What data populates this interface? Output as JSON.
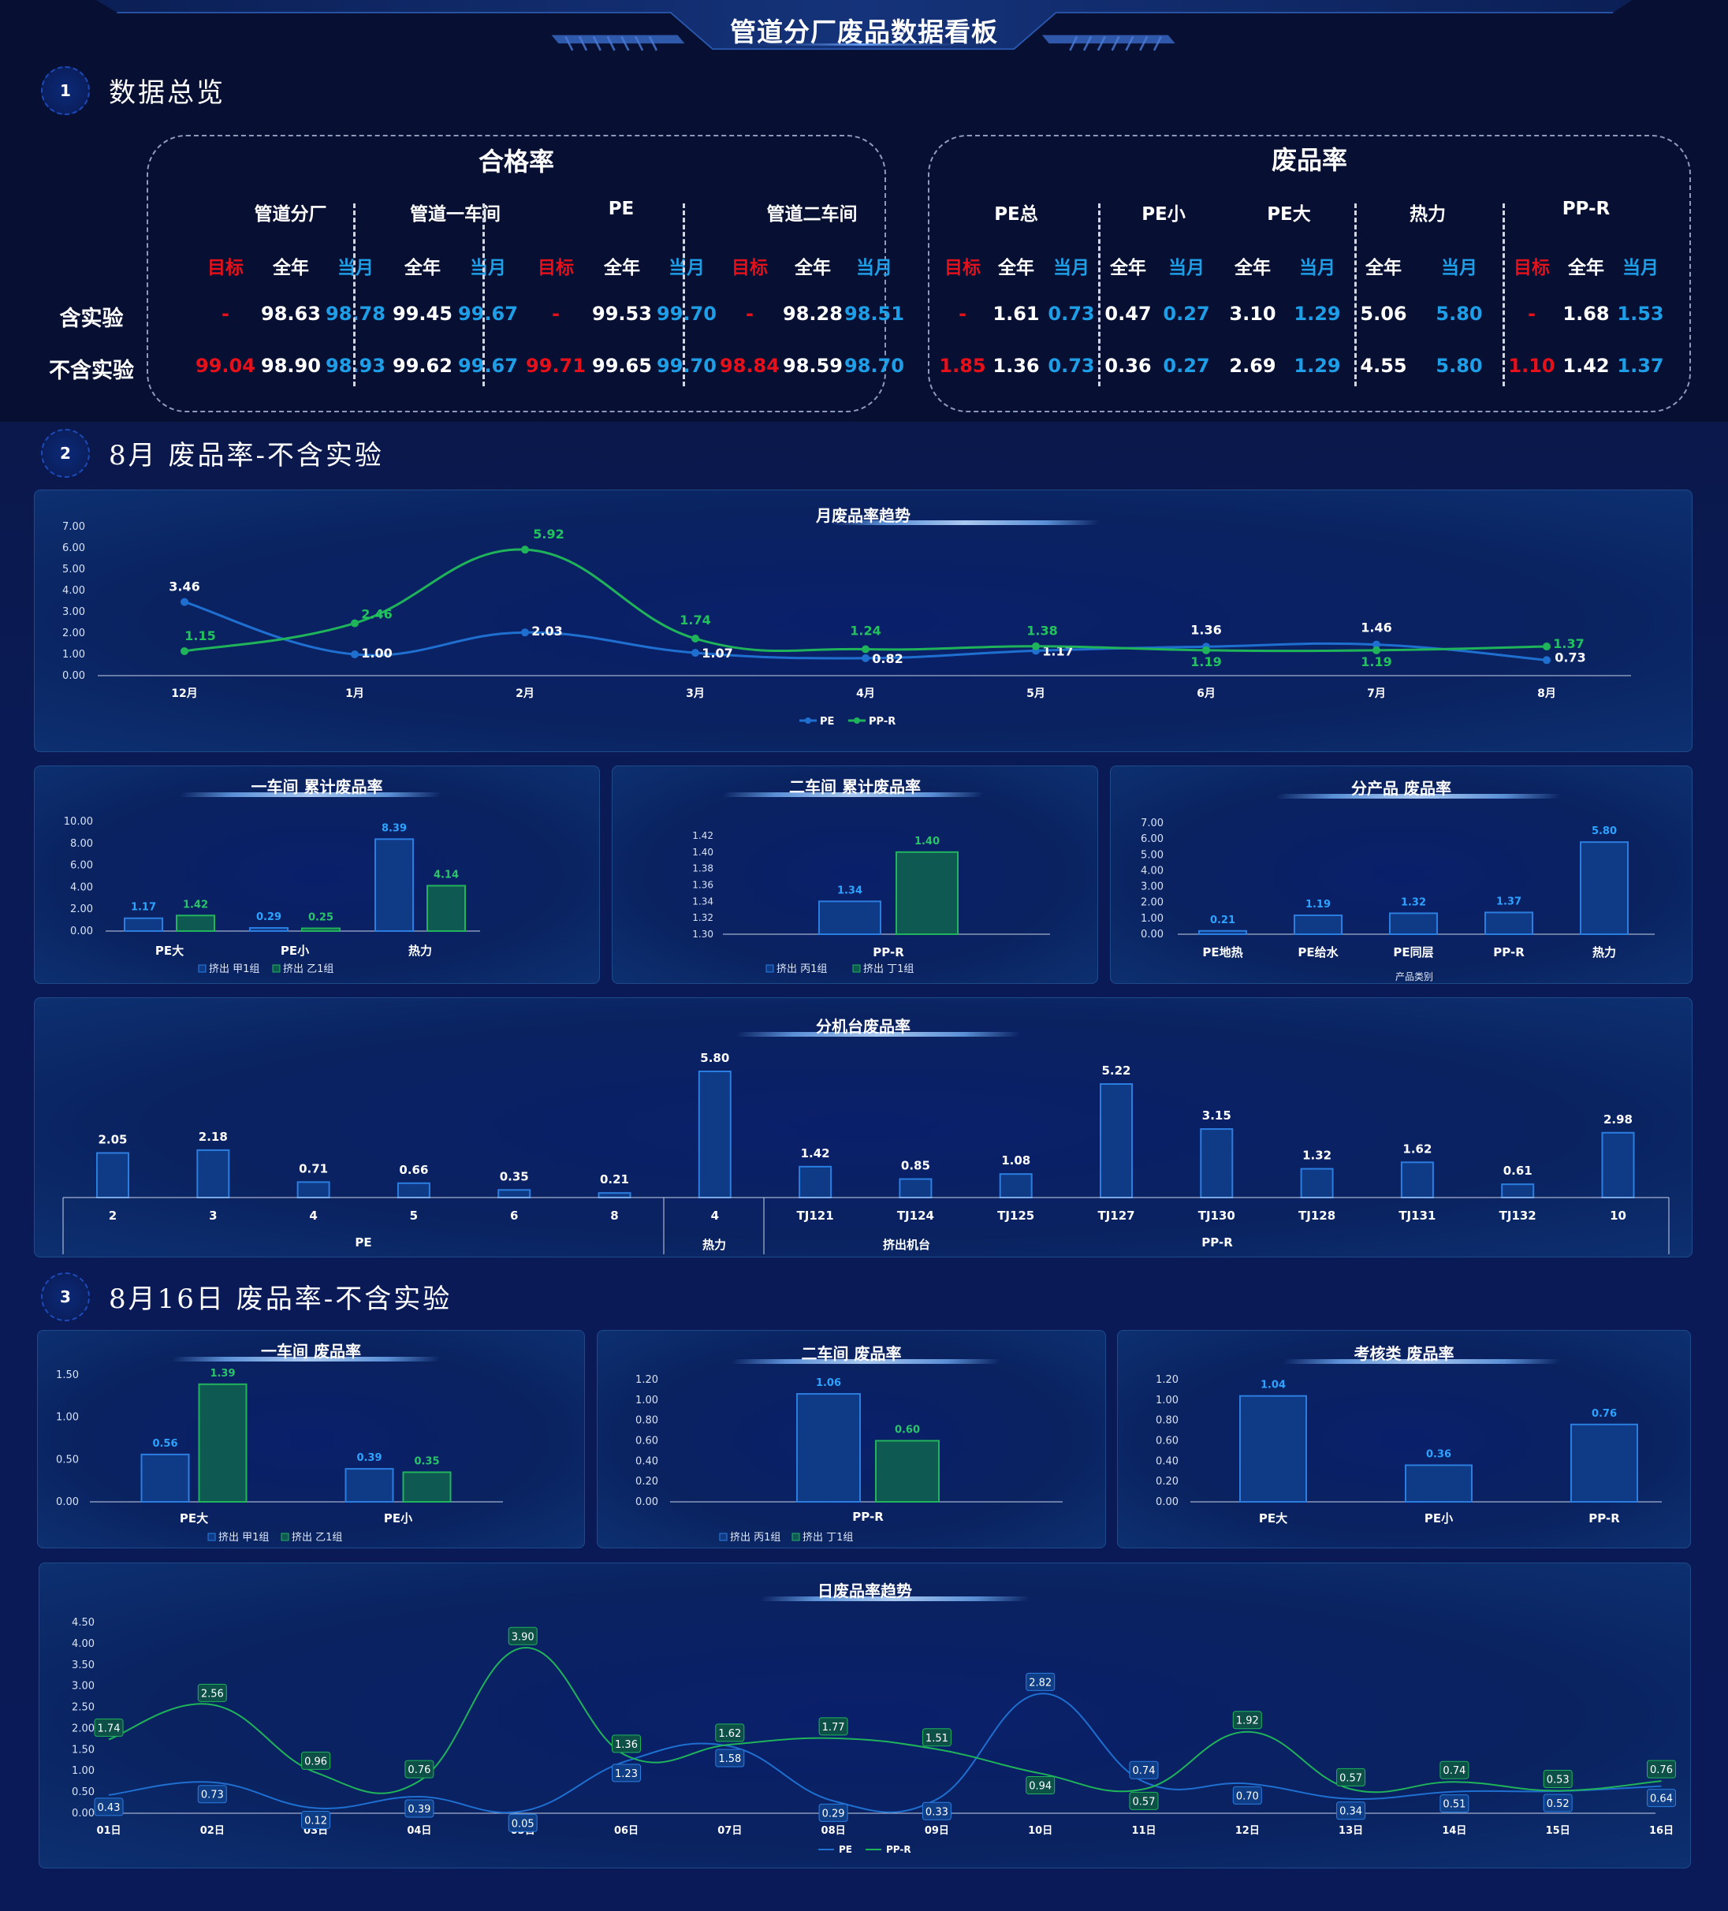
{
  "header": {
    "title": "管道分厂废品数据看板"
  },
  "sections": [
    {
      "num": "1",
      "title": "数据总览"
    },
    {
      "num": "2",
      "title": "8月 废品率-不含实验"
    },
    {
      "num": "3",
      "title": "8月16日 废品率-不含实验"
    }
  ],
  "kpi": {
    "pass": {
      "title": "合格率",
      "groups": [
        "管道分厂",
        "管道一车间",
        "PE",
        "管道二车间"
      ],
      "headers": [
        "目标",
        "全年",
        "当月",
        "全年",
        "当月",
        "目标",
        "全年",
        "当月",
        "目标",
        "全年",
        "当月"
      ],
      "rows": [
        {
          "label": "含实验",
          "values": [
            "-",
            "98.63",
            "98.78",
            "99.45",
            "99.67",
            "-",
            "99.53",
            "99.70",
            "-",
            "98.28",
            "98.51"
          ]
        },
        {
          "label": "不含实验",
          "values": [
            "99.04",
            "98.90",
            "98.93",
            "99.62",
            "99.67",
            "99.71",
            "99.65",
            "99.70",
            "98.84",
            "98.59",
            "98.70"
          ]
        }
      ]
    },
    "scrap": {
      "title": "废品率",
      "groups": [
        "PE总",
        "PE小",
        "PE大",
        "热力",
        "PP-R"
      ],
      "headers": [
        "目标",
        "全年",
        "当月",
        "全年",
        "当月",
        "全年",
        "当月",
        "全年",
        "当月",
        "目标",
        "全年",
        "当月"
      ],
      "rows": [
        {
          "label": "含实验",
          "values": [
            "-",
            "1.61",
            "0.73",
            "0.47",
            "0.27",
            "3.10",
            "1.29",
            "5.06",
            "5.80",
            "-",
            "1.68",
            "1.53"
          ]
        },
        {
          "label": "不含实验",
          "values": [
            "1.85",
            "1.36",
            "0.73",
            "0.36",
            "0.27",
            "2.69",
            "1.29",
            "4.55",
            "5.80",
            "1.10",
            "1.42",
            "1.37"
          ]
        }
      ]
    }
  },
  "colors": {
    "pe": "#1e6fd0",
    "ppr": "#1fb35a",
    "bar_blue_fill": "#0f3a85",
    "bar_blue_stroke": "#2b7de0",
    "bar_green_fill": "#0e5a52",
    "bar_green_stroke": "#22b35c",
    "target_red": "#e6101a",
    "current_blue": "#1f9ee8"
  },
  "chart_data": [
    {
      "id": "monthly",
      "type": "line",
      "title": "月废品率趋势",
      "categories": [
        "12月",
        "1月",
        "2月",
        "3月",
        "4月",
        "5月",
        "6月",
        "7月",
        "8月"
      ],
      "series": [
        {
          "name": "PE",
          "values": [
            3.46,
            1.0,
            2.03,
            1.07,
            0.82,
            1.17,
            1.36,
            1.46,
            0.73
          ]
        },
        {
          "name": "PP-R",
          "values": [
            1.15,
            2.46,
            5.92,
            1.74,
            1.24,
            1.38,
            1.19,
            1.19,
            1.37
          ]
        }
      ],
      "ylim": [
        0,
        7
      ],
      "yticks": [
        "7.00",
        "6.00",
        "5.00",
        "4.00",
        "3.00",
        "2.00",
        "1.00",
        "0.00"
      ],
      "legend": "bottom"
    },
    {
      "id": "ws1",
      "type": "bar",
      "title": "一车间 累计废品率",
      "categories": [
        "PE大",
        "PE小",
        "热力"
      ],
      "series": [
        {
          "name": "挤出 甲1组",
          "values": [
            1.17,
            0.29,
            8.39
          ]
        },
        {
          "name": "挤出 乙1组",
          "values": [
            1.42,
            0.25,
            4.14
          ]
        }
      ],
      "ylim": [
        0,
        10
      ],
      "yticks": [
        "10.00",
        "8.00",
        "6.00",
        "4.00",
        "2.00",
        "0.00"
      ],
      "legend": "bottom"
    },
    {
      "id": "ws2",
      "type": "bar",
      "title": "二车间 累计废品率",
      "categories": [
        "PP-R"
      ],
      "series": [
        {
          "name": "挤出 丙1组",
          "values": [
            1.34
          ]
        },
        {
          "name": "挤出 丁1组",
          "values": [
            1.4
          ]
        }
      ],
      "ylim": [
        1.3,
        1.42
      ],
      "yticks": [
        "1.42",
        "1.40",
        "1.38",
        "1.36",
        "1.34",
        "1.32",
        "1.30"
      ],
      "legend": "bottom"
    },
    {
      "id": "byprod",
      "type": "bar",
      "title": "分产品 废品率",
      "xlabel": "产品类别",
      "categories": [
        "PE地热",
        "PE给水",
        "PE同层",
        "PP-R",
        "热力"
      ],
      "values": [
        0.21,
        1.19,
        1.32,
        1.37,
        5.8
      ],
      "ylim": [
        0,
        7
      ],
      "yticks": [
        "7.00",
        "6.00",
        "5.00",
        "4.00",
        "3.00",
        "2.00",
        "1.00",
        "0.00"
      ]
    },
    {
      "id": "bymachine",
      "type": "bar",
      "title": "分机台废品率",
      "categories": [
        "2",
        "3",
        "4",
        "5",
        "6",
        "8",
        "4",
        "TJ121",
        "TJ124",
        "TJ125",
        "TJ127",
        "TJ130",
        "TJ128",
        "TJ131",
        "TJ132",
        "10"
      ],
      "values": [
        2.05,
        2.18,
        0.71,
        0.66,
        0.35,
        0.21,
        5.8,
        1.42,
        0.85,
        1.08,
        5.22,
        3.15,
        1.32,
        1.62,
        0.61,
        2.98
      ],
      "groups": [
        {
          "label": "PE",
          "span": 6
        },
        {
          "label": "热力",
          "span": 1
        },
        {
          "label": "挤出机台",
          "span": 9,
          "sub": "PP-R"
        }
      ]
    },
    {
      "id": "d1",
      "type": "bar",
      "title": "一车间 废品率",
      "categories": [
        "PE大",
        "PE小"
      ],
      "series": [
        {
          "name": "挤出 甲1组",
          "values": [
            0.56,
            0.39
          ]
        },
        {
          "name": "挤出 乙1组",
          "values": [
            1.39,
            0.35
          ]
        }
      ],
      "ylim": [
        0,
        1.5
      ],
      "yticks": [
        "1.50",
        "1.00",
        "0.50",
        "0.00"
      ],
      "legend": "bottom"
    },
    {
      "id": "d2",
      "type": "bar",
      "title": "二车间 废品率",
      "categories": [
        "PP-R"
      ],
      "series": [
        {
          "name": "挤出 丙1组",
          "values": [
            1.06
          ]
        },
        {
          "name": "挤出 丁1组",
          "values": [
            0.6
          ]
        }
      ],
      "ylim": [
        0,
        1.2
      ],
      "yticks": [
        "1.20",
        "1.00",
        "0.80",
        "0.60",
        "0.40",
        "0.20",
        "0.00"
      ],
      "legend": "bottom"
    },
    {
      "id": "d3",
      "type": "bar",
      "title": "考核类 废品率",
      "categories": [
        "PE大",
        "PE小",
        "PP-R"
      ],
      "values": [
        1.04,
        0.36,
        0.76
      ],
      "ylim": [
        0,
        1.2
      ],
      "yticks": [
        "1.20",
        "1.00",
        "0.80",
        "0.60",
        "0.40",
        "0.20",
        "0.00"
      ]
    },
    {
      "id": "daily",
      "type": "line",
      "title": "日废品率趋势",
      "categories": [
        "01日",
        "02日",
        "03日",
        "04日",
        "05日",
        "06日",
        "07日",
        "08日",
        "09日",
        "10日",
        "11日",
        "12日",
        "13日",
        "14日",
        "15日",
        "16日"
      ],
      "series": [
        {
          "name": "PE",
          "values": [
            0.43,
            0.73,
            0.12,
            0.39,
            0.05,
            1.23,
            1.58,
            0.29,
            0.33,
            2.82,
            0.74,
            0.7,
            0.34,
            0.51,
            0.52,
            0.64
          ]
        },
        {
          "name": "PP-R",
          "values": [
            1.74,
            2.56,
            0.96,
            0.76,
            3.9,
            1.36,
            1.62,
            1.77,
            1.51,
            0.94,
            0.57,
            1.92,
            0.57,
            0.74,
            0.53,
            0.76
          ]
        }
      ],
      "ylim": [
        0,
        4.5
      ],
      "yticks": [
        "4.50",
        "4.00",
        "3.50",
        "3.00",
        "2.50",
        "2.00",
        "1.50",
        "1.00",
        "0.50",
        "0.00"
      ],
      "legend": "bottom"
    }
  ]
}
